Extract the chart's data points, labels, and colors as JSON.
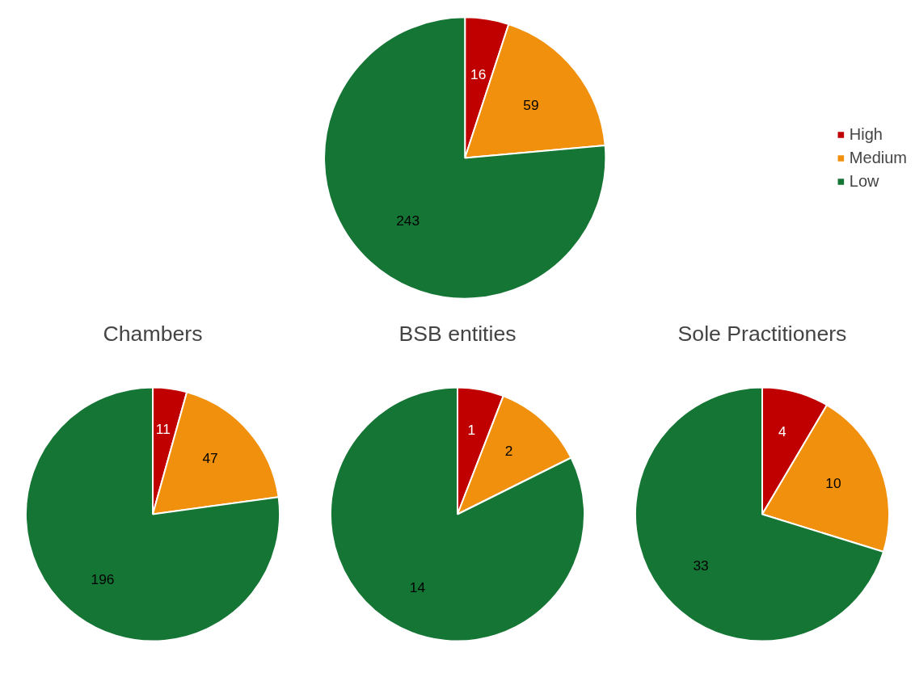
{
  "chart_data": [
    {
      "type": "pie",
      "categories": [
        "High",
        "Medium",
        "Low"
      ],
      "values": [
        16,
        59,
        243
      ],
      "colors": [
        "#c00000",
        "#f0900c",
        "#157534"
      ],
      "data_labels": true,
      "legend": "right"
    },
    {
      "type": "pie",
      "title": "Chambers",
      "categories": [
        null,
        null,
        null
      ],
      "values": [
        11,
        47,
        196
      ],
      "colors": [
        "#c00000",
        "#f0900c",
        "#157534"
      ],
      "data_labels": true
    },
    {
      "type": "pie",
      "title": "BSB entities",
      "categories": [
        null,
        null,
        null
      ],
      "values": [
        1,
        2,
        14
      ],
      "colors": [
        "#c00000",
        "#f0900c",
        "#157534"
      ],
      "data_labels": true
    },
    {
      "type": "pie",
      "title": "Sole Practitioners",
      "categories": [
        null,
        null,
        null
      ],
      "values": [
        4,
        10,
        33
      ],
      "colors": [
        "#c00000",
        "#f0900c",
        "#157534"
      ],
      "data_labels": true
    }
  ]
}
